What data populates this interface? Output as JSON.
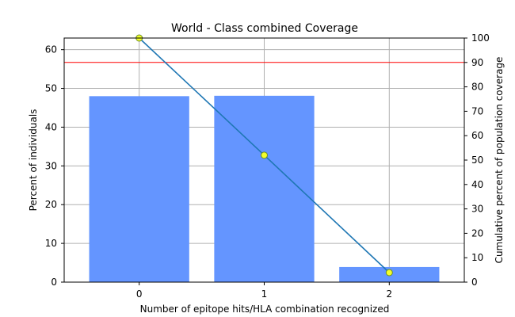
{
  "chart_data": {
    "type": "bar",
    "title": "World - Class combined Coverage",
    "xlabel": "Number of epitope hits/HLA combination recognized",
    "ylabel": "Percent of individuals",
    "y2label": "Cumulative percent of population coverage",
    "categories": [
      "0",
      "1",
      "2"
    ],
    "x": [
      0,
      1,
      2
    ],
    "xlim": [
      -0.6,
      2.6
    ],
    "ylim": [
      0,
      63
    ],
    "y2lim": [
      0,
      100
    ],
    "yticks": [
      0,
      10,
      20,
      30,
      40,
      50,
      60
    ],
    "y2ticks": [
      0,
      10,
      20,
      30,
      40,
      50,
      60,
      70,
      80,
      90,
      100
    ],
    "bar_values": [
      48.0,
      48.1,
      3.9
    ],
    "cumulative_values": [
      100,
      52.0,
      3.9
    ],
    "reference_line_y2": 90,
    "grid": true,
    "colors": {
      "bar": "#6495ff",
      "line": "#1f77b4",
      "marker_fill": "#f3fe2a",
      "marker_edge": "#6b8e23",
      "reference": "#ff0000",
      "grid": "#b0b0b0"
    }
  }
}
